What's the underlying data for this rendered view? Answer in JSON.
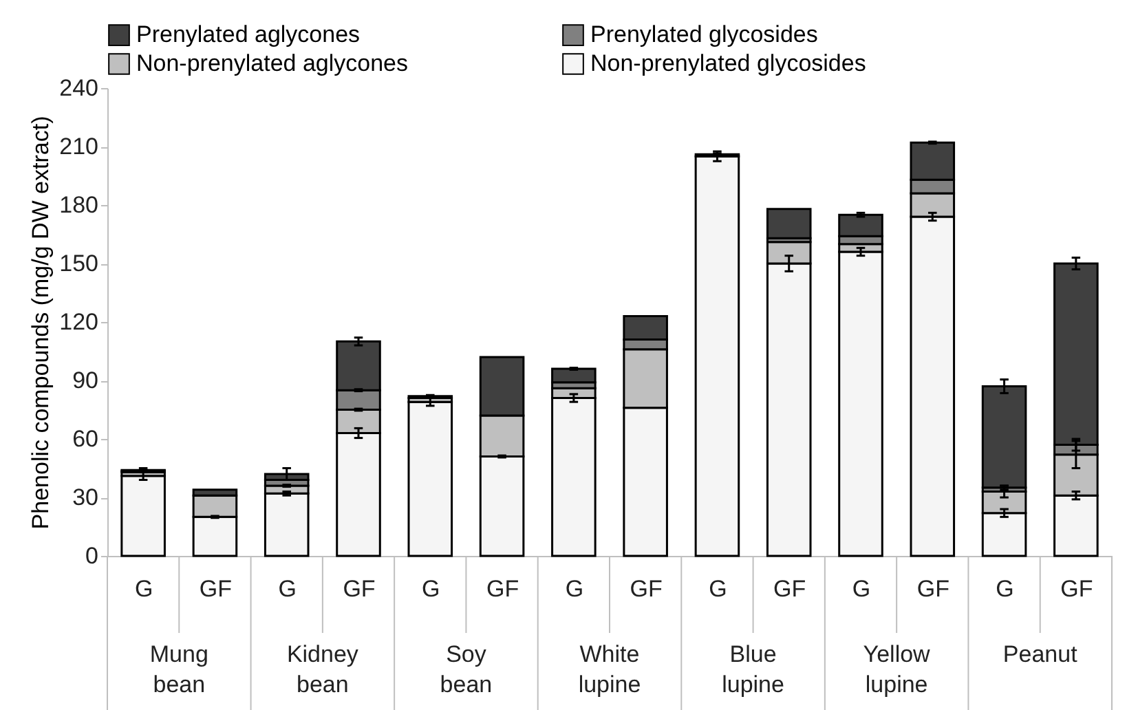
{
  "chart_data": {
    "type": "bar",
    "stacked": true,
    "ylabel": "Phenolic compounds (mg/g DW extract)",
    "categories": [
      "G",
      "GF",
      "G",
      "GF",
      "G",
      "GF",
      "G",
      "GF",
      "G",
      "GF",
      "G",
      "GF",
      "G",
      "GF"
    ],
    "annotations": [
      "Mung bean",
      "Kidney bean",
      "Soy bean",
      "White lupine",
      "Blue lupine",
      "Yellow lupine",
      "Peanut"
    ],
    "series": [
      {
        "name": "Non-prenylated glycosides",
        "color": "#f5f5f5",
        "values": [
          41,
          20,
          32,
          63,
          79,
          51,
          81,
          76,
          205,
          150,
          156,
          174,
          22,
          31
        ],
        "errors": [
          2,
          0.5,
          1,
          2.5,
          2,
          0.5,
          2,
          null,
          2.5,
          4,
          2,
          2,
          2,
          2
        ]
      },
      {
        "name": "Non-prenylated aglycones",
        "color": "#bfbfbf",
        "values": [
          2,
          11,
          4,
          12,
          2,
          21,
          5,
          30,
          null,
          11,
          4,
          12,
          11,
          21
        ],
        "errors": [
          null,
          null,
          0.5,
          0.5,
          null,
          null,
          null,
          null,
          null,
          null,
          null,
          null,
          3,
          7
        ]
      },
      {
        "name": "Prenylated glycosides",
        "color": "#808080",
        "values": [
          0.5,
          null,
          3,
          10,
          null,
          null,
          3,
          5,
          null,
          2,
          4,
          7,
          2,
          5
        ],
        "errors": [
          null,
          null,
          null,
          0.5,
          null,
          null,
          null,
          null,
          null,
          null,
          null,
          null,
          1,
          3
        ]
      },
      {
        "name": "Prenylated aglycones",
        "color": "#404040",
        "values": [
          0.5,
          3,
          3,
          25,
          1,
          30,
          7,
          12,
          1,
          15,
          11,
          19,
          52,
          93
        ],
        "errors": [
          1,
          null,
          3,
          2,
          0.5,
          null,
          0.5,
          null,
          0.5,
          null,
          1,
          0.5,
          3.5,
          3
        ]
      }
    ],
    "ylim": [
      0,
      240
    ],
    "yticks": [
      0,
      30,
      60,
      90,
      120,
      150,
      180,
      210,
      240
    ],
    "grid": false,
    "legend": "top"
  }
}
